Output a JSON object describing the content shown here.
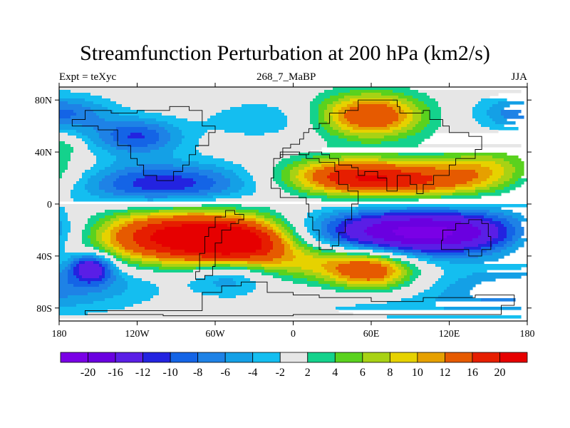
{
  "chart_data": {
    "type": "heatmap",
    "title": "Streamfunction Perturbation at 200 hPa (km2/s)",
    "left_label": "Expt = teXyc",
    "center_label": "268_7_MaBP",
    "right_label": "JJA",
    "x_ticks": [
      {
        "value": -180,
        "label": "180"
      },
      {
        "value": -120,
        "label": "120W"
      },
      {
        "value": -60,
        "label": "60W"
      },
      {
        "value": 0,
        "label": "0"
      },
      {
        "value": 60,
        "label": "60E"
      },
      {
        "value": 120,
        "label": "120E"
      },
      {
        "value": 180,
        "label": "180"
      }
    ],
    "y_ticks": [
      {
        "value": 80,
        "label": "80N"
      },
      {
        "value": 40,
        "label": "40N"
      },
      {
        "value": 0,
        "label": "0"
      },
      {
        "value": -40,
        "label": "40S"
      },
      {
        "value": -80,
        "label": "80S"
      }
    ],
    "xlim": [
      -180,
      180
    ],
    "ylim": [
      -90,
      90
    ],
    "levels": [
      -20,
      -16,
      -12,
      -10,
      -8,
      -6,
      -4,
      -2,
      2,
      4,
      6,
      8,
      10,
      12,
      16,
      20
    ],
    "level_labels": [
      "-20",
      "-16",
      "-12",
      "-10",
      "-8",
      "-6",
      "-4",
      "-2",
      "2",
      "4",
      "6",
      "8",
      "10",
      "12",
      "16",
      "20"
    ],
    "colors": [
      "#7a00e6",
      "#6a00e0",
      "#5a1ee6",
      "#2323e0",
      "#1464e6",
      "#1e82e6",
      "#14a0e6",
      "#14bef0",
      "#e6e6e6",
      "#14d28c",
      "#5ad21e",
      "#a8d214",
      "#e6d200",
      "#e6a000",
      "#e65a00",
      "#e61e00",
      "#e60000"
    ],
    "features": [
      {
        "lon": 60,
        "lat": 68,
        "amp": 16,
        "wx": 28,
        "wy": 12
      },
      {
        "lon": 40,
        "lat": 22,
        "amp": 12,
        "wx": 35,
        "wy": 10
      },
      {
        "lon": 95,
        "lat": 18,
        "amp": 14,
        "wx": 50,
        "wy": 10
      },
      {
        "lon": 150,
        "lat": 30,
        "amp": 6,
        "wx": 28,
        "wy": 10
      },
      {
        "lon": -100,
        "lat": 15,
        "amp": -12,
        "wx": 50,
        "wy": 12
      },
      {
        "lon": -120,
        "lat": 52,
        "amp": -10,
        "wx": 25,
        "wy": 10
      },
      {
        "lon": -175,
        "lat": 45,
        "amp": 3,
        "wx": 8,
        "wy": 6
      },
      {
        "lon": -90,
        "lat": -25,
        "amp": 22,
        "wx": 55,
        "wy": 15
      },
      {
        "lon": -40,
        "lat": -30,
        "amp": 14,
        "wx": 30,
        "wy": 12
      },
      {
        "lon": 100,
        "lat": -22,
        "amp": -22,
        "wx": 65,
        "wy": 13
      },
      {
        "lon": 60,
        "lat": -52,
        "amp": 12,
        "wx": 22,
        "wy": 10
      },
      {
        "lon": 30,
        "lat": -45,
        "amp": 8,
        "wx": 40,
        "wy": 10
      },
      {
        "lon": -155,
        "lat": -48,
        "amp": -14,
        "wx": 12,
        "wy": 8
      },
      {
        "lon": -50,
        "lat": -55,
        "amp": -7,
        "wx": 22,
        "wy": 10
      },
      {
        "lon": -150,
        "lat": -60,
        "amp": -5,
        "wx": 40,
        "wy": 12
      },
      {
        "lon": 150,
        "lat": -65,
        "amp": -5,
        "wx": 35,
        "wy": 10
      },
      {
        "lon": -170,
        "lat": 70,
        "amp": -5,
        "wx": 25,
        "wy": 10
      },
      {
        "lon": 170,
        "lat": 70,
        "amp": -4,
        "wx": 25,
        "wy": 10
      },
      {
        "lon": 100,
        "lat": -80,
        "amp": -3,
        "wx": 80,
        "wy": 8
      },
      {
        "lon": -25,
        "lat": 65,
        "amp": -4,
        "wx": 30,
        "wy": 10
      }
    ],
    "continents": [
      [
        [
          -60,
          -30
        ],
        [
          -55,
          -20
        ],
        [
          -48,
          -15
        ],
        [
          -42,
          -12
        ],
        [
          -38,
          -8
        ],
        [
          -45,
          -5
        ],
        [
          -52,
          -10
        ],
        [
          -60,
          -18
        ],
        [
          -65,
          -25
        ],
        [
          -68,
          -38
        ],
        [
          -72,
          -52
        ],
        [
          -75,
          -58
        ],
        [
          -68,
          -55
        ],
        [
          -62,
          -48
        ]
      ],
      [
        [
          -10,
          35
        ],
        [
          -15,
          20
        ],
        [
          -17,
          12
        ],
        [
          -10,
          5
        ],
        [
          5,
          5
        ],
        [
          10,
          0
        ],
        [
          12,
          -10
        ],
        [
          15,
          -20
        ],
        [
          20,
          -35
        ],
        [
          30,
          -32
        ],
        [
          35,
          -22
        ],
        [
          40,
          -12
        ],
        [
          45,
          0
        ],
        [
          50,
          10
        ],
        [
          42,
          15
        ],
        [
          35,
          25
        ],
        [
          32,
          32
        ],
        [
          20,
          35
        ],
        [
          10,
          38
        ]
      ],
      [
        [
          -10,
          36
        ],
        [
          -8,
          43
        ],
        [
          -2,
          46
        ],
        [
          5,
          50
        ],
        [
          8,
          55
        ],
        [
          12,
          58
        ],
        [
          20,
          62
        ],
        [
          28,
          70
        ],
        [
          40,
          72
        ],
        [
          50,
          80
        ],
        [
          75,
          80
        ],
        [
          80,
          75
        ],
        [
          82,
          70
        ],
        [
          100,
          72
        ],
        [
          105,
          65
        ],
        [
          115,
          60
        ],
        [
          120,
          55
        ],
        [
          135,
          52
        ],
        [
          145,
          42
        ],
        [
          140,
          35
        ],
        [
          125,
          30
        ],
        [
          120,
          22
        ],
        [
          108,
          15
        ],
        [
          100,
          8
        ],
        [
          95,
          15
        ],
        [
          90,
          22
        ],
        [
          80,
          10
        ],
        [
          72,
          20
        ],
        [
          65,
          25
        ],
        [
          55,
          22
        ],
        [
          50,
          28
        ],
        [
          45,
          30
        ],
        [
          35,
          35
        ],
        [
          28,
          38
        ],
        [
          22,
          40
        ],
        [
          12,
          38
        ],
        [
          5,
          40
        ]
      ],
      [
        [
          115,
          -20
        ],
        [
          125,
          -15
        ],
        [
          135,
          -12
        ],
        [
          145,
          -15
        ],
        [
          150,
          -25
        ],
        [
          152,
          -35
        ],
        [
          145,
          -40
        ],
        [
          135,
          -35
        ],
        [
          120,
          -35
        ],
        [
          114,
          -28
        ]
      ],
      [
        [
          -70,
          -68
        ],
        [
          -55,
          -63
        ],
        [
          -40,
          -60
        ],
        [
          -20,
          -68
        ],
        [
          0,
          -70
        ],
        [
          20,
          -72
        ],
        [
          60,
          -75
        ],
        [
          100,
          -72
        ],
        [
          140,
          -70
        ],
        [
          170,
          -78
        ],
        [
          160,
          -85
        ],
        [
          0,
          -86
        ],
        [
          -100,
          -85
        ],
        [
          -160,
          -82
        ]
      ],
      [
        [
          -170,
          65
        ],
        [
          -160,
          72
        ],
        [
          -140,
          70
        ],
        [
          -120,
          72
        ],
        [
          -95,
          75
        ],
        [
          -80,
          72
        ],
        [
          -70,
          60
        ],
        [
          -60,
          55
        ],
        [
          -65,
          45
        ],
        [
          -75,
          38
        ],
        [
          -80,
          30
        ],
        [
          -85,
          25
        ],
        [
          -92,
          18
        ],
        [
          -100,
          18
        ],
        [
          -105,
          22
        ],
        [
          -115,
          30
        ],
        [
          -120,
          35
        ],
        [
          -125,
          45
        ],
        [
          -135,
          57
        ],
        [
          -150,
          60
        ],
        [
          -165,
          60
        ]
      ]
    ]
  }
}
